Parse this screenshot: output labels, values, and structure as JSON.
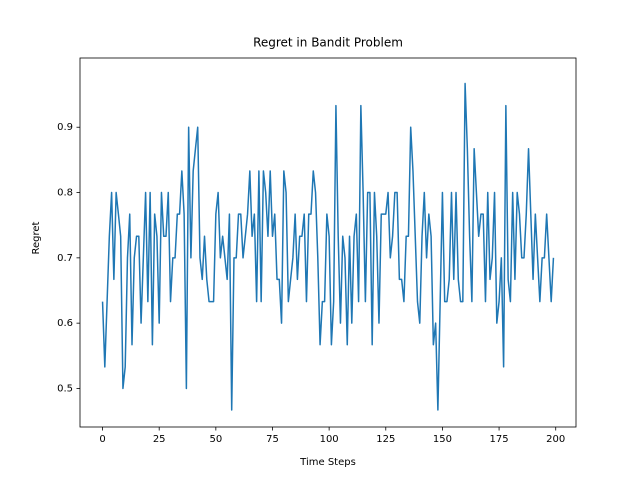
{
  "chart_data": {
    "type": "line",
    "title": "Regret in Bandit Problem",
    "x_label": "Time Steps",
    "y_label": "Regret",
    "color": "#1f77b4",
    "xlim": [
      -9.95,
      208.95
    ],
    "ylim": [
      0.441,
      1.006
    ],
    "xticks": [
      0,
      25,
      50,
      75,
      100,
      125,
      150,
      175,
      200
    ],
    "yticks": [
      0.5,
      0.6,
      0.7,
      0.8,
      0.9
    ],
    "values": [
      0.633,
      0.533,
      0.633,
      0.733,
      0.8,
      0.667,
      0.8,
      0.767,
      0.733,
      0.5,
      0.533,
      0.7,
      0.767,
      0.567,
      0.7,
      0.733,
      0.733,
      0.6,
      0.7,
      0.8,
      0.633,
      0.8,
      0.567,
      0.767,
      0.733,
      0.6,
      0.8,
      0.733,
      0.733,
      0.8,
      0.633,
      0.7,
      0.7,
      0.767,
      0.767,
      0.833,
      0.767,
      0.5,
      0.9,
      0.7,
      0.833,
      0.867,
      0.9,
      0.7,
      0.667,
      0.733,
      0.667,
      0.633,
      0.633,
      0.633,
      0.767,
      0.8,
      0.7,
      0.733,
      0.7,
      0.667,
      0.767,
      0.467,
      0.7,
      0.7,
      0.767,
      0.767,
      0.7,
      0.733,
      0.767,
      0.833,
      0.733,
      0.767,
      0.633,
      0.833,
      0.633,
      0.833,
      0.8,
      0.733,
      0.833,
      0.733,
      0.767,
      0.667,
      0.667,
      0.6,
      0.833,
      0.8,
      0.633,
      0.667,
      0.7,
      0.767,
      0.667,
      0.733,
      0.733,
      0.767,
      0.633,
      0.767,
      0.767,
      0.833,
      0.8,
      0.7,
      0.567,
      0.633,
      0.633,
      0.767,
      0.733,
      0.567,
      0.633,
      0.933,
      0.733,
      0.6,
      0.733,
      0.7,
      0.567,
      0.733,
      0.6,
      0.733,
      0.767,
      0.633,
      0.933,
      0.8,
      0.633,
      0.8,
      0.8,
      0.567,
      0.8,
      0.733,
      0.6,
      0.767,
      0.767,
      0.767,
      0.8,
      0.7,
      0.733,
      0.8,
      0.8,
      0.667,
      0.667,
      0.633,
      0.733,
      0.733,
      0.9,
      0.833,
      0.733,
      0.633,
      0.6,
      0.733,
      0.8,
      0.7,
      0.767,
      0.733,
      0.567,
      0.6,
      0.467,
      0.633,
      0.8,
      0.633,
      0.633,
      0.667,
      0.8,
      0.667,
      0.8,
      0.667,
      0.633,
      0.633,
      0.967,
      0.867,
      0.733,
      0.633,
      0.867,
      0.8,
      0.733,
      0.767,
      0.767,
      0.633,
      0.8,
      0.667,
      0.7,
      0.8,
      0.6,
      0.633,
      0.7,
      0.533,
      0.933,
      0.667,
      0.633,
      0.8,
      0.667,
      0.8,
      0.767,
      0.7,
      0.7,
      0.767,
      0.867,
      0.767,
      0.667,
      0.767,
      0.7,
      0.633,
      0.7,
      0.7,
      0.767,
      0.7,
      0.633,
      0.7
    ]
  }
}
